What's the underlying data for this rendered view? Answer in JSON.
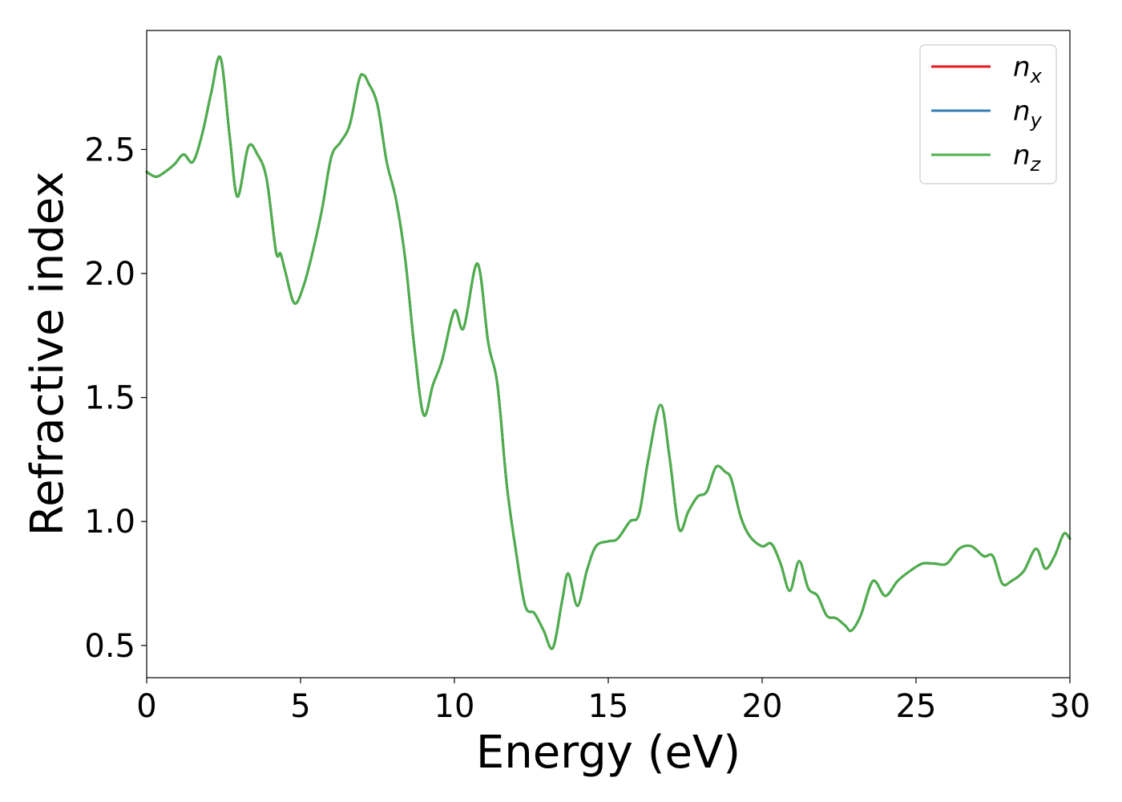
{
  "chart_data": {
    "type": "line",
    "xlabel": "Energy (eV)",
    "ylabel": "Refractive index",
    "xlim": [
      0,
      30
    ],
    "ylim": [
      0.37,
      2.98
    ],
    "xticks": [
      0,
      5,
      10,
      15,
      20,
      25,
      30
    ],
    "xtick_labels": [
      "0",
      "5",
      "10",
      "15",
      "20",
      "25",
      "30"
    ],
    "yticks": [
      0.5,
      1.0,
      1.5,
      2.0,
      2.5
    ],
    "ytick_labels": [
      "0.5",
      "1.0",
      "1.5",
      "2.0",
      "2.5"
    ],
    "grid": false,
    "legend_position": "top-right",
    "colors": {
      "n_x": "#e41a1c",
      "n_y": "#377eb8",
      "n_z": "#4daf4a"
    },
    "x": [
      0.0,
      0.3,
      0.6,
      0.9,
      1.2,
      1.5,
      1.8,
      2.1,
      2.4,
      2.7,
      2.95,
      3.3,
      3.6,
      3.9,
      4.2,
      4.35,
      4.5,
      4.8,
      5.1,
      5.4,
      5.7,
      6.0,
      6.3,
      6.6,
      6.9,
      7.05,
      7.2,
      7.5,
      7.8,
      8.1,
      8.4,
      8.7,
      9.0,
      9.3,
      9.6,
      10.0,
      10.3,
      10.75,
      11.1,
      11.4,
      11.7,
      12.0,
      12.3,
      12.6,
      12.9,
      13.2,
      13.5,
      13.7,
      14.0,
      14.3,
      14.6,
      15.0,
      15.3,
      15.7,
      16.0,
      16.3,
      16.7,
      17.0,
      17.3,
      17.6,
      17.9,
      18.2,
      18.5,
      18.8,
      19.0,
      19.3,
      19.6,
      20.0,
      20.3,
      20.6,
      20.9,
      21.2,
      21.5,
      21.8,
      22.1,
      22.4,
      22.7,
      22.9,
      23.2,
      23.6,
      24.0,
      24.4,
      24.8,
      25.2,
      25.6,
      26.0,
      26.4,
      26.8,
      27.2,
      27.5,
      27.8,
      28.1,
      28.5,
      28.9,
      29.2,
      29.5,
      29.8,
      30.0
    ],
    "series": [
      {
        "name": "n_x",
        "values": [
          2.41,
          2.39,
          2.41,
          2.44,
          2.48,
          2.45,
          2.56,
          2.73,
          2.87,
          2.55,
          2.31,
          2.51,
          2.48,
          2.38,
          2.09,
          2.08,
          2.01,
          1.88,
          1.95,
          2.09,
          2.26,
          2.47,
          2.53,
          2.6,
          2.78,
          2.8,
          2.77,
          2.68,
          2.45,
          2.3,
          2.06,
          1.7,
          1.43,
          1.55,
          1.65,
          1.85,
          1.78,
          2.04,
          1.72,
          1.55,
          1.15,
          0.88,
          0.66,
          0.63,
          0.56,
          0.49,
          0.68,
          0.79,
          0.66,
          0.8,
          0.9,
          0.92,
          0.93,
          1.0,
          1.03,
          1.25,
          1.47,
          1.25,
          0.97,
          1.04,
          1.1,
          1.12,
          1.22,
          1.2,
          1.17,
          1.02,
          0.94,
          0.9,
          0.91,
          0.83,
          0.72,
          0.84,
          0.73,
          0.7,
          0.62,
          0.61,
          0.58,
          0.56,
          0.62,
          0.76,
          0.7,
          0.76,
          0.8,
          0.83,
          0.83,
          0.83,
          0.89,
          0.9,
          0.86,
          0.86,
          0.75,
          0.76,
          0.8,
          0.89,
          0.81,
          0.86,
          0.95,
          0.93
        ]
      },
      {
        "name": "n_y",
        "values": [
          2.41,
          2.39,
          2.41,
          2.44,
          2.48,
          2.45,
          2.56,
          2.73,
          2.87,
          2.55,
          2.31,
          2.51,
          2.48,
          2.38,
          2.09,
          2.08,
          2.01,
          1.88,
          1.95,
          2.09,
          2.26,
          2.47,
          2.53,
          2.6,
          2.78,
          2.8,
          2.77,
          2.68,
          2.45,
          2.3,
          2.06,
          1.7,
          1.43,
          1.55,
          1.65,
          1.85,
          1.78,
          2.04,
          1.72,
          1.55,
          1.15,
          0.88,
          0.66,
          0.63,
          0.56,
          0.49,
          0.68,
          0.79,
          0.66,
          0.8,
          0.9,
          0.92,
          0.93,
          1.0,
          1.03,
          1.25,
          1.47,
          1.25,
          0.97,
          1.04,
          1.1,
          1.12,
          1.22,
          1.2,
          1.17,
          1.02,
          0.94,
          0.9,
          0.91,
          0.83,
          0.72,
          0.84,
          0.73,
          0.7,
          0.62,
          0.61,
          0.58,
          0.56,
          0.62,
          0.76,
          0.7,
          0.76,
          0.8,
          0.83,
          0.83,
          0.83,
          0.89,
          0.9,
          0.86,
          0.86,
          0.75,
          0.76,
          0.8,
          0.89,
          0.81,
          0.86,
          0.95,
          0.93
        ]
      },
      {
        "name": "n_z",
        "values": [
          2.41,
          2.39,
          2.41,
          2.44,
          2.48,
          2.45,
          2.56,
          2.73,
          2.87,
          2.55,
          2.31,
          2.51,
          2.48,
          2.38,
          2.09,
          2.08,
          2.01,
          1.88,
          1.95,
          2.09,
          2.26,
          2.47,
          2.53,
          2.6,
          2.78,
          2.8,
          2.77,
          2.68,
          2.45,
          2.3,
          2.06,
          1.7,
          1.43,
          1.55,
          1.65,
          1.85,
          1.78,
          2.04,
          1.72,
          1.55,
          1.15,
          0.88,
          0.66,
          0.63,
          0.56,
          0.49,
          0.68,
          0.79,
          0.66,
          0.8,
          0.9,
          0.92,
          0.93,
          1.0,
          1.03,
          1.25,
          1.47,
          1.25,
          0.97,
          1.04,
          1.1,
          1.12,
          1.22,
          1.2,
          1.17,
          1.02,
          0.94,
          0.9,
          0.91,
          0.83,
          0.72,
          0.84,
          0.73,
          0.7,
          0.62,
          0.61,
          0.58,
          0.56,
          0.62,
          0.76,
          0.7,
          0.76,
          0.8,
          0.83,
          0.83,
          0.83,
          0.89,
          0.9,
          0.86,
          0.86,
          0.75,
          0.76,
          0.8,
          0.89,
          0.81,
          0.86,
          0.95,
          0.93
        ]
      }
    ]
  }
}
